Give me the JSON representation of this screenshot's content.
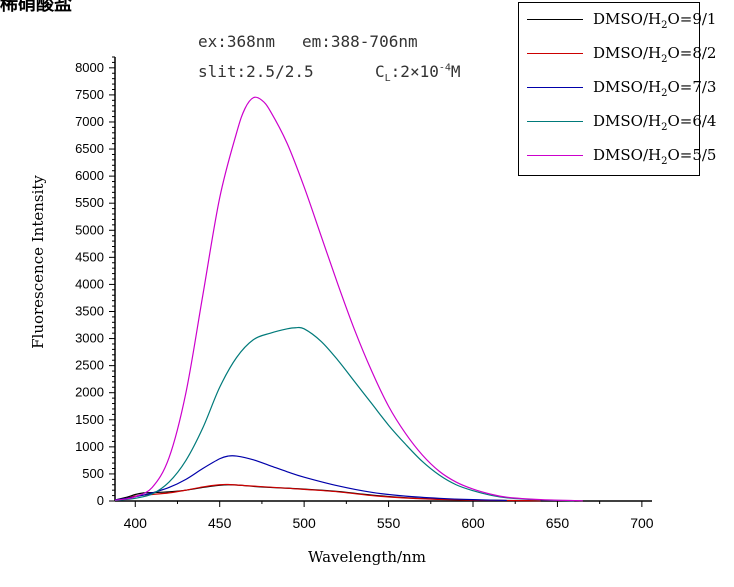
{
  "corner_title": "稀硝酸盐",
  "annotations": {
    "line1_ex": "ex:368nm",
    "line1_em": "em:388-706nm",
    "line2_slit": "slit:2.5/2.5",
    "line2_conc": "C",
    "line2_conc_sub": "L",
    "line2_conc_val": ":2×10",
    "line2_conc_exp": "-4",
    "line2_conc_unit": "M"
  },
  "colors": {
    "axis": "#000000",
    "series": [
      "#000000",
      "#cc0000",
      "#0000aa",
      "#007a7a",
      "#cc00cc"
    ]
  },
  "chart_data": {
    "type": "line",
    "title": "",
    "xlabel": "Wavelength/nm",
    "ylabel": "Fluorescence Intensity",
    "xlim": [
      388,
      706
    ],
    "ylim": [
      0,
      8200
    ],
    "xticks": [
      400,
      450,
      500,
      550,
      600,
      650,
      700
    ],
    "yticks": [
      0,
      500,
      1000,
      1500,
      2000,
      2500,
      3000,
      3500,
      4000,
      4500,
      5000,
      5500,
      6000,
      6500,
      7000,
      7500,
      8000
    ],
    "grid": false,
    "legend_position": "top-right",
    "legend": [
      {
        "pre": "DMSO/H",
        "sub": "2",
        "post": "O=9/1"
      },
      {
        "pre": "DMSO/H",
        "sub": "2",
        "post": "O=8/2"
      },
      {
        "pre": "DMSO/H",
        "sub": "2",
        "post": "O=7/3"
      },
      {
        "pre": "DMSO/H",
        "sub": "2",
        "post": "O=6/4"
      },
      {
        "pre": "DMSO/H",
        "sub": "2",
        "post": "O=5/5"
      }
    ],
    "series": [
      {
        "name": "DMSO/H2O=9/1",
        "x": [
          388,
          395,
          400,
          405,
          410,
          420,
          430,
          440,
          450,
          455,
          460,
          470,
          480,
          500,
          520,
          540,
          560,
          580,
          600,
          620,
          640
        ],
        "y": [
          20,
          70,
          120,
          150,
          155,
          170,
          200,
          250,
          290,
          300,
          295,
          270,
          250,
          220,
          175,
          110,
          60,
          35,
          20,
          10,
          5
        ]
      },
      {
        "name": "DMSO/H2O=8/2",
        "x": [
          388,
          395,
          400,
          405,
          410,
          420,
          430,
          440,
          450,
          455,
          460,
          470,
          480,
          500,
          520,
          540,
          560,
          580,
          600,
          620,
          640
        ],
        "y": [
          15,
          50,
          90,
          110,
          120,
          150,
          200,
          260,
          300,
          305,
          295,
          275,
          255,
          215,
          170,
          100,
          55,
          30,
          15,
          8,
          4
        ]
      },
      {
        "name": "DMSO/H2O=7/3",
        "x": [
          388,
          395,
          400,
          405,
          410,
          420,
          430,
          440,
          450,
          455,
          460,
          470,
          480,
          490,
          500,
          520,
          540,
          560,
          580,
          600,
          620
        ],
        "y": [
          20,
          50,
          80,
          110,
          150,
          250,
          400,
          600,
          780,
          830,
          830,
          760,
          650,
          540,
          440,
          280,
          160,
          90,
          50,
          25,
          10
        ]
      },
      {
        "name": "DMSO/H2O=6/4",
        "x": [
          388,
          395,
          400,
          410,
          420,
          430,
          440,
          450,
          460,
          470,
          480,
          490,
          495,
          500,
          510,
          520,
          530,
          540,
          550,
          560,
          570,
          580,
          590,
          600,
          610,
          620,
          640,
          660
        ],
        "y": [
          10,
          30,
          50,
          130,
          350,
          750,
          1350,
          2100,
          2650,
          2980,
          3100,
          3180,
          3200,
          3180,
          2950,
          2600,
          2200,
          1800,
          1400,
          1050,
          730,
          480,
          300,
          190,
          110,
          60,
          20,
          5
        ]
      },
      {
        "name": "DMSO/H2O=5/5",
        "x": [
          388,
          395,
          400,
          410,
          420,
          430,
          440,
          450,
          460,
          465,
          470,
          475,
          480,
          490,
          500,
          510,
          520,
          530,
          540,
          550,
          560,
          570,
          580,
          590,
          600,
          610,
          620,
          640,
          660,
          665
        ],
        "y": [
          15,
          40,
          80,
          250,
          800,
          2000,
          3800,
          5600,
          6800,
          7250,
          7450,
          7400,
          7200,
          6600,
          5800,
          4900,
          4000,
          3150,
          2400,
          1750,
          1250,
          850,
          550,
          350,
          220,
          130,
          70,
          25,
          8,
          3
        ]
      }
    ]
  }
}
